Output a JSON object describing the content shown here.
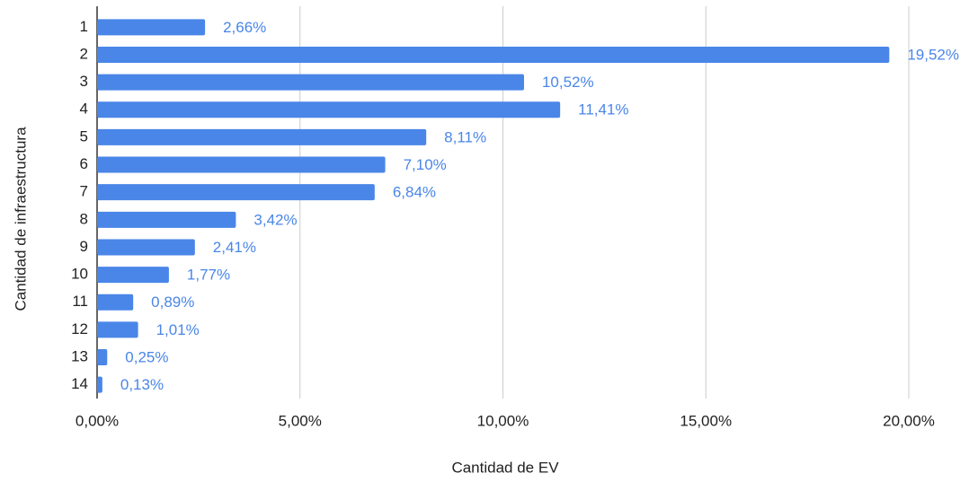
{
  "chart_data": {
    "type": "bar",
    "orientation": "horizontal",
    "x_label": "Cantidad de EV",
    "y_label": "Cantidad de infraestructura",
    "categories": [
      "1",
      "2",
      "3",
      "4",
      "5",
      "6",
      "7",
      "8",
      "9",
      "10",
      "11",
      "12",
      "13",
      "14"
    ],
    "values": [
      2.66,
      19.52,
      10.52,
      11.41,
      8.11,
      7.1,
      6.84,
      3.42,
      2.41,
      1.77,
      0.89,
      1.01,
      0.25,
      0.13
    ],
    "value_labels": [
      "2,66%",
      "19,52%",
      "10,52%",
      "11,41%",
      "8,11%",
      "7,10%",
      "6,84%",
      "3,42%",
      "2,41%",
      "1,77%",
      "0,89%",
      "1,01%",
      "0,25%",
      "0,13%"
    ],
    "color": "#4a86e8",
    "xlim": [
      0,
      20
    ],
    "xticks": [
      {
        "value": 0,
        "label": "0,00%"
      },
      {
        "value": 5,
        "label": "5,00%"
      },
      {
        "value": 10,
        "label": "10,00%"
      },
      {
        "value": 15,
        "label": "15,00%"
      },
      {
        "value": 20,
        "label": "20,00%"
      }
    ],
    "grid": true
  }
}
